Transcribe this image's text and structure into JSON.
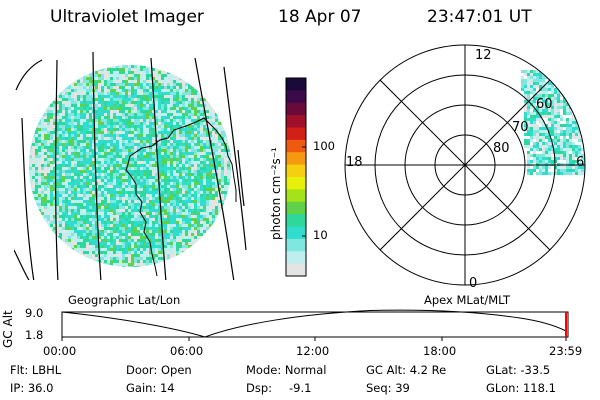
{
  "header": {
    "instrument": "Ultraviolet Imager",
    "date": "18 Apr 07",
    "time": "23:47:01 UT"
  },
  "colorbar": {
    "unit_label": "photon cm⁻²s⁻¹",
    "ticks": [
      "100",
      "10"
    ],
    "colors": [
      "#1a0a3a",
      "#3a0a4a",
      "#6a0a3a",
      "#a0102a",
      "#d02018",
      "#f05a10",
      "#f59a10",
      "#f5d010",
      "#e6f00a",
      "#a6e21a",
      "#5fd24a",
      "#2ed89a",
      "#30dccc",
      "#7fe6e0",
      "#bfeeee",
      "#e4e4e4"
    ]
  },
  "geo_panel": {
    "label": "Geographic Lat/Lon"
  },
  "polar_panel": {
    "label": "Apex  MLat/MLT",
    "mlt_labels": {
      "top": "12",
      "bottom": "0",
      "left": "18",
      "right": "6"
    },
    "lat_labels": [
      "60",
      "70",
      "80"
    ]
  },
  "altitude_plot": {
    "ylabel": "GC Alt",
    "yticks": [
      "9.0",
      "1.8"
    ],
    "xticks": [
      "00:00",
      "06:00",
      "12:00",
      "18:00",
      "23:59"
    ]
  },
  "info": {
    "flt": "Flt: LBHL",
    "ip": "IP: 36.0",
    "door": "Door: Open",
    "gain": "Gain: 14",
    "mode": "Mode: Normal",
    "dsp_label": "Dsp:",
    "dsp_value": "-9.1",
    "gc_alt": "GC Alt: 4.2 Re",
    "seq": "Seq: 39",
    "glat": "GLat: -33.5",
    "glon": "GLon: 118.1"
  }
}
